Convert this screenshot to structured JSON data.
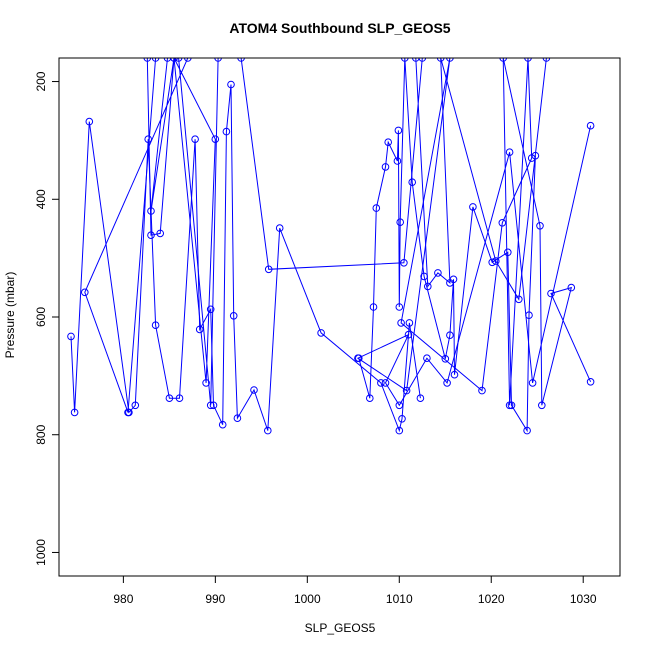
{
  "chart_data": {
    "type": "line",
    "title": "ATOM4 Southbound SLP_GEOS5",
    "xlabel": "SLP_GEOS5",
    "ylabel": "Pressure (mbar)",
    "xlim": [
      973,
      1034
    ],
    "ylim": [
      1040,
      160
    ],
    "y_reversed": true,
    "x_ticks": [
      980,
      990,
      1000,
      1010,
      1020,
      1030
    ],
    "y_ticks": [
      200,
      400,
      600,
      800,
      1000
    ],
    "x_tick_labels": [
      "980",
      "990",
      "1000",
      "1010",
      "1020",
      "1030"
    ],
    "y_tick_labels": [
      "200",
      "400",
      "600",
      "800",
      "1000"
    ],
    "grid": false,
    "series": [
      {
        "color": "#0000ff",
        "marker": "open-circle",
        "x": [
          1030.8,
          1024.5,
          1022.0,
          1015.2,
          1013.0,
          1010.0,
          1008.5,
          1011.0,
          1005.5,
          1010.8,
          1015.5,
          1010.2,
          1019.0,
          1021.2,
          1024.4,
          1024.0,
          1022.0,
          1021.3,
          1025.3,
          1025.5,
          1028.7,
          1026.5,
          1030.8
        ],
        "y": [
          275,
          712,
          320,
          712,
          670,
          750,
          712,
          630,
          670,
          725,
          160,
          610,
          725,
          440,
          330,
          160,
          750,
          160,
          445,
          750,
          550,
          560,
          710
        ]
      },
      {
        "color": "#0000ff",
        "marker": "open-circle",
        "x": [
          974.3,
          974.7,
          976.3,
          980.6,
          981.3,
          982.7,
          983.5,
          985.0,
          986.1,
          987.8,
          988.3,
          989.5,
          989.8,
          990.8,
          991.2,
          991.7,
          992.0,
          992.4,
          994.2,
          995.7,
          997.0,
          1001.5,
          1008.0,
          1010.0,
          1010.3,
          1011.1,
          1012.3
        ],
        "y": [
          633,
          762,
          268,
          762,
          750,
          298,
          614,
          738,
          738,
          298,
          621,
          587,
          750,
          783,
          285,
          205,
          598,
          772,
          724,
          793,
          449,
          627,
          712,
          793,
          773,
          610,
          738
        ]
      },
      {
        "color": "#0000ff",
        "marker": "open-circle",
        "x": [
          982.6,
          983.0,
          984.0,
          985.5,
          990.0,
          989.0,
          985.5,
          983.0,
          984.8,
          987.0,
          975.8,
          980.5,
          983.5,
          986.0,
          989.5,
          990.3,
          992.8,
          995.8,
          1010.5,
          1012.5,
          1011.8,
          1013.1,
          1014.2,
          1015.5,
          1014.5,
          1020.5,
          1023.0,
          1026.0
        ],
        "y": [
          160,
          461,
          458,
          160,
          298,
          712,
          160,
          420,
          160,
          160,
          558,
          762,
          160,
          160,
          750,
          160,
          160,
          519,
          508,
          160,
          160,
          548,
          525,
          542,
          160,
          505,
          570,
          160
        ]
      },
      {
        "color": "#0000ff",
        "marker": "open-circle",
        "x": [
          1005.6,
          1006.8,
          1007.2,
          1007.5,
          1008.5,
          1008.8,
          1009.8,
          1009.9,
          1010.0,
          1010.1,
          1010.6,
          1011.4,
          1012.7,
          1015.0,
          1015.5,
          1015.9,
          1016.0,
          1018.0,
          1020.1,
          1021.8,
          1022.2,
          1023.9,
          1024.1,
          1024.8
        ],
        "y": [
          670,
          738,
          583,
          415,
          345,
          303,
          335,
          283,
          583,
          439,
          160,
          371,
          531,
          671,
          631,
          536,
          698,
          413,
          507,
          490,
          750,
          793,
          597,
          326
        ]
      }
    ]
  }
}
